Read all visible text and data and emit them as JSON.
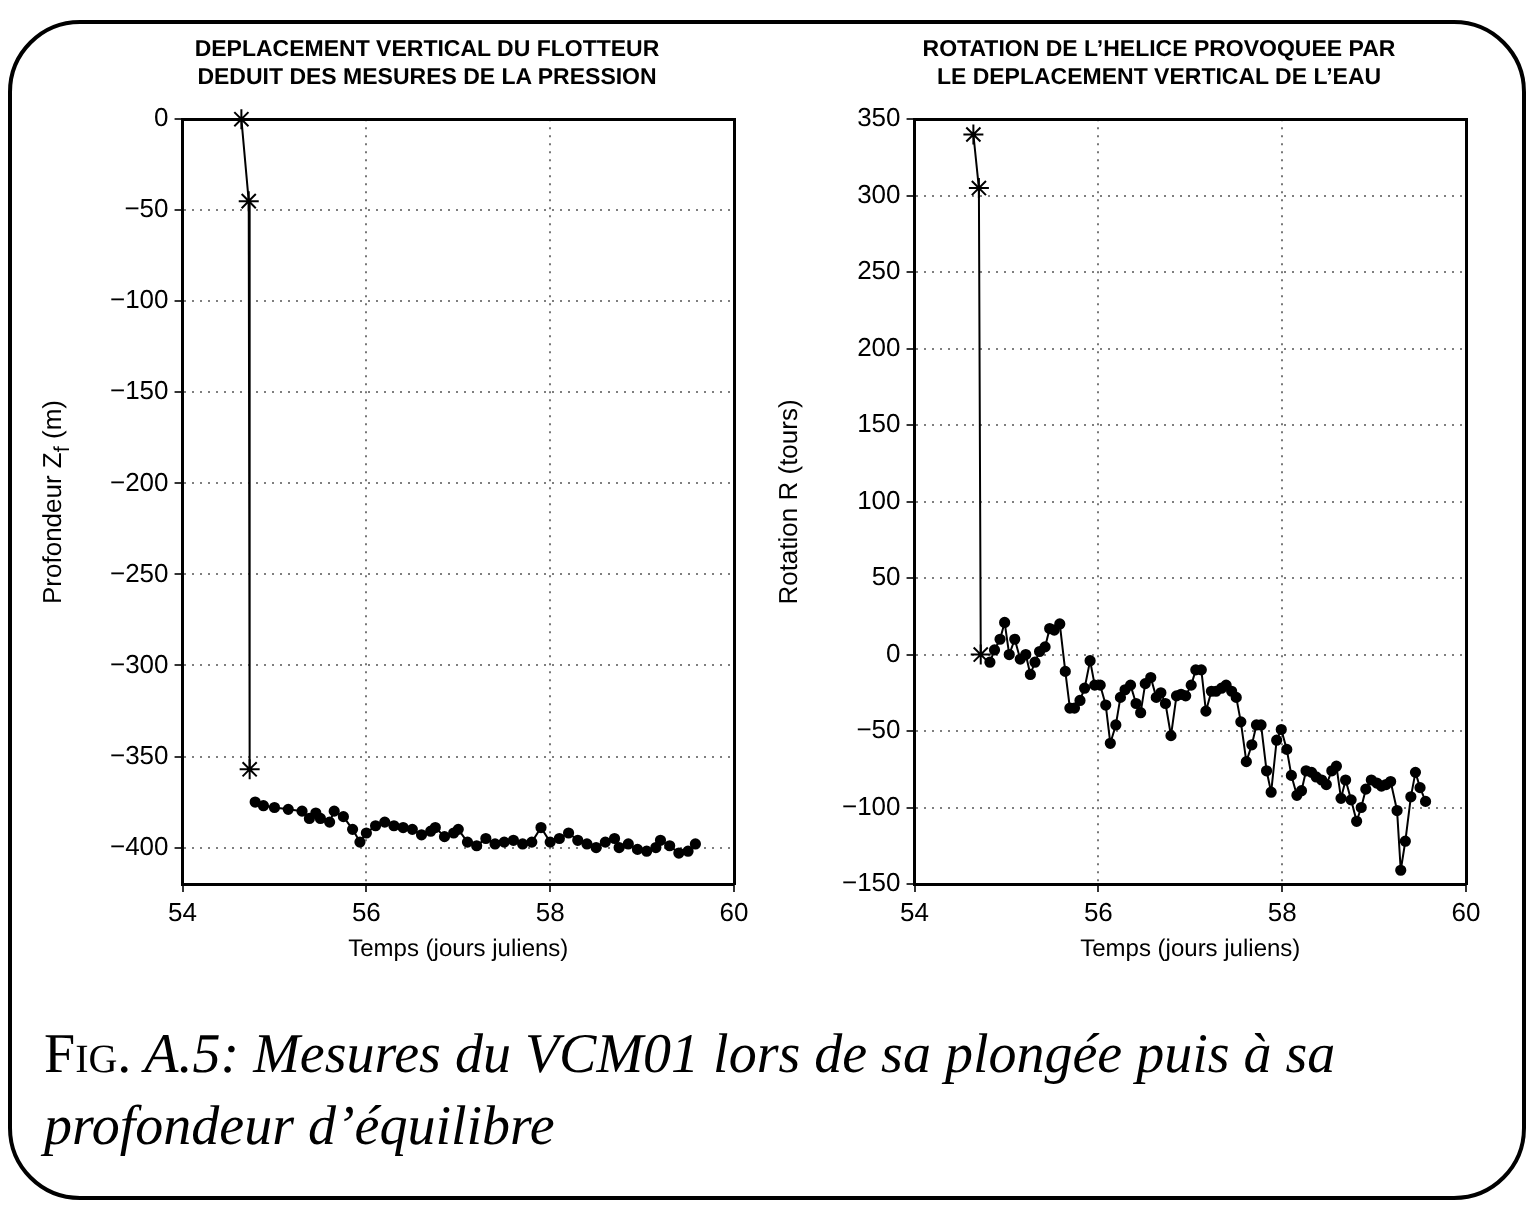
{
  "chart_data": [
    {
      "type": "line",
      "title": "DEPLACEMENT VERTICAL DU FLOTTEUR\nDEDUIT DES MESURES DE LA PRESSION",
      "xlabel": "Temps (jours juliens)",
      "ylabel": "Profondeur  Z$_{f}$ (m)",
      "xlim": [
        54,
        60
      ],
      "xticks": [
        54,
        56,
        58,
        60
      ],
      "ylim": [
        -420,
        0
      ],
      "yticks": [
        -400,
        -350,
        -300,
        -250,
        -200,
        -150,
        -100,
        -50,
        0
      ],
      "grid": true,
      "line_style": "solid",
      "series": [
        {
          "color": "#000000",
          "marker": "cross",
          "x": [
            54.64,
            54.72,
            54.73
          ],
          "values": [
            0,
            -45,
            -357
          ]
        },
        {
          "color": "#000000",
          "marker": "circle",
          "x": [
            54.79,
            54.88,
            55.0,
            55.15,
            55.3,
            55.38,
            55.45,
            55.5,
            55.6,
            55.65,
            55.75,
            55.85,
            55.93,
            56.0,
            56.1,
            56.2,
            56.3,
            56.4,
            56.5,
            56.6,
            56.7,
            56.75,
            56.85,
            56.95,
            57.0,
            57.1,
            57.2,
            57.3,
            57.4,
            57.5,
            57.6,
            57.7,
            57.8,
            57.9,
            58.0,
            58.1,
            58.2,
            58.3,
            58.4,
            58.5,
            58.6,
            58.7,
            58.75,
            58.85,
            58.95,
            59.05,
            59.15,
            59.2,
            59.3,
            59.4,
            59.5,
            59.58
          ],
          "values": [
            -375,
            -377,
            -378,
            -379,
            -380,
            -384,
            -381,
            -384,
            -386,
            -380,
            -383,
            -390,
            -397,
            -392,
            -388,
            -386,
            -388,
            -389,
            -390,
            -393,
            -391,
            -389,
            -394,
            -392,
            -390,
            -397,
            -399,
            -395,
            -398,
            -397,
            -396,
            -398,
            -397,
            -389,
            -397,
            -395,
            -392,
            -396,
            -398,
            -400,
            -397,
            -395,
            -400,
            -398,
            -401,
            -402,
            -400,
            -396,
            -399,
            -403,
            -402,
            -398
          ]
        }
      ],
      "annotations": [
        "Fig. A.5: Mesures du VCM01 lors de sa plongée puis à sa profondeur d’équilibre"
      ]
    },
    {
      "type": "line",
      "title": "ROTATION DE L’HELICE PROVOQUEE PAR\nLE DEPLACEMENT VERTICAL DE L’EAU",
      "xlabel": "Temps (jours juliens)",
      "ylabel": "Rotation  R (tours)",
      "xlim": [
        54,
        60
      ],
      "xticks": [
        54,
        56,
        58,
        60
      ],
      "ylim": [
        -150,
        350
      ],
      "yticks": [
        -150,
        -100,
        -50,
        0,
        50,
        100,
        150,
        200,
        250,
        300,
        350
      ],
      "grid": true,
      "line_style": "solid",
      "series": [
        {
          "color": "#000000",
          "marker": "cross",
          "x": [
            54.64,
            54.7,
            54.72
          ],
          "values": [
            340,
            305,
            0
          ]
        },
        {
          "color": "#000000",
          "marker": "circle",
          "x": [
            54.82,
            54.87,
            54.93,
            54.98,
            55.03,
            55.09,
            55.15,
            55.21,
            55.26,
            55.31,
            55.36,
            55.42,
            55.47,
            55.52,
            55.58,
            55.64,
            55.69,
            55.74,
            55.8,
            55.85,
            55.91,
            55.96,
            56.02,
            56.08,
            56.13,
            56.19,
            56.24,
            56.29,
            56.35,
            56.41,
            56.46,
            56.51,
            56.57,
            56.63,
            56.68,
            56.73,
            56.79,
            56.85,
            56.9,
            56.95,
            57.01,
            57.06,
            57.12,
            57.17,
            57.23,
            57.28,
            57.34,
            57.39,
            57.45,
            57.5,
            57.55,
            57.61,
            57.67,
            57.72,
            57.77,
            57.83,
            57.88,
            57.94,
            57.99,
            58.05,
            58.1,
            58.16,
            58.21,
            58.26,
            58.32,
            58.37,
            58.43,
            58.48,
            58.54,
            58.59,
            58.64,
            58.69,
            58.75,
            58.81,
            58.86,
            58.91,
            58.97,
            59.03,
            59.08,
            59.13,
            59.18,
            59.25,
            59.29,
            59.34,
            59.4,
            59.45,
            59.5,
            59.56
          ],
          "values": [
            -5,
            3,
            10,
            21,
            0,
            10,
            -3,
            0,
            -13,
            -5,
            2,
            5,
            17,
            16,
            20,
            -11,
            -35,
            -35,
            -30,
            -22,
            -4,
            -20,
            -20,
            -33,
            -58,
            -46,
            -28,
            -23,
            -20,
            -32,
            -38,
            -19,
            -15,
            -28,
            -25,
            -32,
            -53,
            -27,
            -26,
            -27,
            -20,
            -10,
            -10,
            -37,
            -24,
            -24,
            -22,
            -20,
            -24,
            -28,
            -44,
            -70,
            -59,
            -46,
            -46,
            -76,
            -90,
            -56,
            -49,
            -62,
            -79,
            -92,
            -89,
            -76,
            -77,
            -80,
            -82,
            -85,
            -76,
            -73,
            -94,
            -82,
            -95,
            -109,
            -100,
            -88,
            -82,
            -84,
            -86,
            -85,
            -83,
            -102,
            -141,
            -122,
            -93,
            -77,
            -87,
            -96
          ]
        }
      ]
    }
  ]
}
